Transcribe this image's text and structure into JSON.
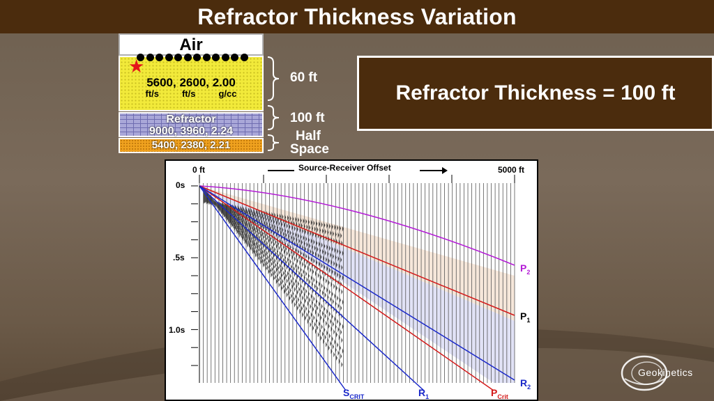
{
  "title": "Refractor Thickness Variation",
  "model": {
    "air_label": "Air",
    "weathering": {
      "values": "5600, 2600,  2.00",
      "units": [
        "ft/s",
        "ft/s",
        "g/cc"
      ]
    },
    "refractor": {
      "name": "Refractor",
      "values": "9000, 3960,  2.24"
    },
    "half_space": {
      "values": "5400, 2380,  2.21"
    },
    "thickness_labels": {
      "weathering": "60 ft",
      "refractor": "100 ft",
      "half_space_line1": "Half",
      "half_space_line2": "Space"
    },
    "receiver_count": 12
  },
  "result_text": "Refractor Thickness = 100 ft",
  "seismogram": {
    "offset_start": "0 ft",
    "offset_axis_label": "Source-Receiver Offset",
    "offset_end": "5000 ft",
    "time_labels": [
      "0s",
      ".5s",
      "1.0s"
    ],
    "event_labels": {
      "p2": {
        "main": "P",
        "sub": "2"
      },
      "p1": {
        "main": "P",
        "sub": "1"
      },
      "r2": {
        "main": "R",
        "sub": "2"
      },
      "scrit": {
        "main": "S",
        "sub": "CRIT"
      },
      "r1": {
        "main": "R",
        "sub": "1"
      },
      "pcrit": {
        "main": "P",
        "sub": "Crit"
      }
    },
    "colors": {
      "p2": "#b31bd6",
      "p1": "#d41a1a",
      "r_lines": "#1a28c9",
      "event_label_blue": "#1a28c9",
      "event_label_red": "#d41a1a",
      "event_label_purple": "#b31bd6"
    }
  },
  "logo": {
    "text": "Geokinetics"
  }
}
